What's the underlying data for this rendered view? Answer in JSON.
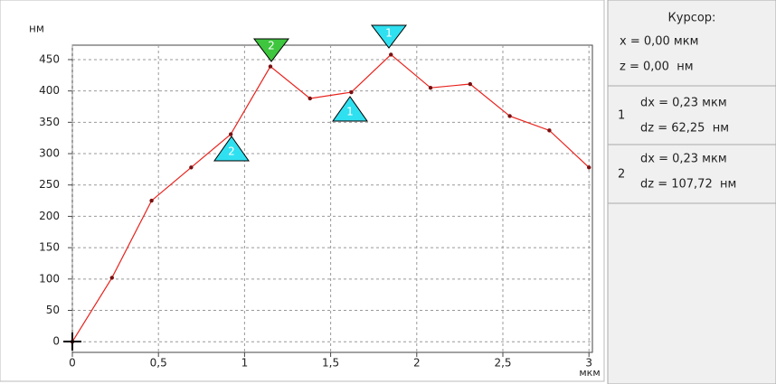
{
  "chart_data": {
    "type": "line",
    "x_unit": "мкм",
    "y_unit": "нм",
    "x": [
      0,
      0.23,
      0.46,
      0.69,
      0.92,
      1.15,
      1.38,
      1.62,
      1.85,
      2.08,
      2.31,
      2.54,
      2.77,
      3.0
    ],
    "series": [
      {
        "color": "#e8221c",
        "values": [
          0,
          102,
          225,
          278,
          331,
          439,
          388,
          398,
          458,
          405,
          411,
          360,
          337,
          278
        ]
      }
    ],
    "xlim": [
      0,
      3.02
    ],
    "ylim": [
      -17,
      473
    ],
    "xticks": [
      0,
      {
        "value": 0.5,
        "label": "0,5"
      },
      1,
      {
        "value": 1.5,
        "label": "1,5"
      },
      2,
      {
        "value": 2.5,
        "label": "2,5"
      },
      3
    ],
    "yticks": [
      0,
      50,
      100,
      150,
      200,
      250,
      300,
      350,
      400,
      450
    ],
    "grid": true,
    "markers": [
      {
        "label": "2"
      },
      {
        "label": "1"
      },
      {
        "label": "1"
      },
      {
        "label": "2"
      }
    ]
  },
  "panel": {
    "cursor": {
      "title": "Курсор:",
      "x": "x = 0,00 мкм",
      "z": "z = 0,00  нм"
    },
    "measurements": [
      {
        "id": "1",
        "dx": "dx = 0,23 мкм",
        "dz": "dz = 62,25  нм"
      },
      {
        "id": "2",
        "dx": "dx = 0,23 мкм",
        "dz": "dz = 107,72  нм"
      }
    ]
  }
}
